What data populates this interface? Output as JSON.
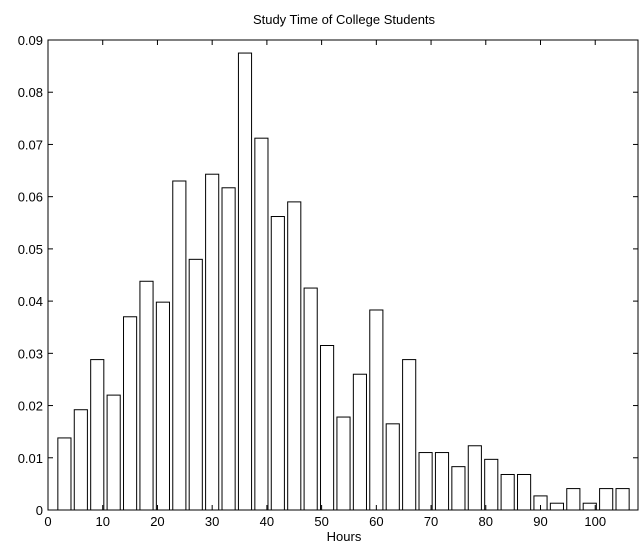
{
  "chart_data": {
    "type": "bar",
    "title": "Study Time of College Students",
    "xlabel": "Hours",
    "ylabel": "",
    "xlim": [
      0,
      108
    ],
    "ylim": [
      0,
      0.09
    ],
    "xticks": [
      0,
      10,
      20,
      30,
      40,
      50,
      60,
      70,
      80,
      90,
      100
    ],
    "yticks": [
      "0",
      "0.01",
      "0.02",
      "0.03",
      "0.04",
      "0.05",
      "0.06",
      "0.07",
      "0.08",
      "0.09"
    ],
    "bar_width": 2.4,
    "x": [
      3,
      6,
      9,
      12,
      15,
      18,
      21,
      24,
      27,
      30,
      33,
      36,
      39,
      42,
      45,
      48,
      51,
      54,
      57,
      60,
      63,
      66,
      69,
      72,
      75,
      78,
      81,
      84,
      87,
      90,
      93,
      96,
      99,
      102,
      105
    ],
    "values": [
      0.0138,
      0.0192,
      0.0288,
      0.022,
      0.037,
      0.0438,
      0.0398,
      0.063,
      0.048,
      0.0643,
      0.0617,
      0.0875,
      0.0712,
      0.0562,
      0.059,
      0.0425,
      0.0315,
      0.0178,
      0.026,
      0.0383,
      0.0165,
      0.0288,
      0.011,
      0.011,
      0.0083,
      0.0123,
      0.0097,
      0.0068,
      0.0068,
      0.0027,
      0.0013,
      0.0041,
      0.0013,
      0.0041,
      0.0041
    ],
    "grid": false
  }
}
